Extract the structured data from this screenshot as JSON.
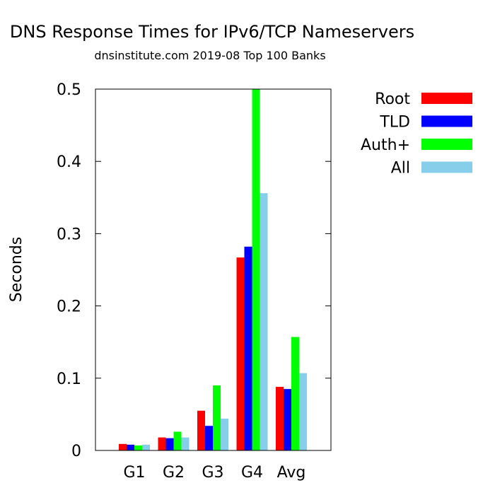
{
  "chart_data": {
    "type": "bar",
    "title": "DNS Response Times for IPv6/TCP Nameservers",
    "subtitle": "dnsinstitute.com 2019-08 Top 100 Banks",
    "xlabel": "",
    "ylabel": "Seconds",
    "categories": [
      "G1",
      "G2",
      "G3",
      "G4",
      "Avg"
    ],
    "ylim": [
      0,
      0.5
    ],
    "yticks": [
      "0",
      "0.1",
      "0.2",
      "0.3",
      "0.4",
      "0.5"
    ],
    "grid": false,
    "legend_position": "top-right",
    "series": [
      {
        "name": "Root",
        "color": "#ff0000",
        "values": [
          0.009,
          0.018,
          0.055,
          0.267,
          0.088
        ]
      },
      {
        "name": "TLD",
        "color": "#0000ff",
        "values": [
          0.008,
          0.017,
          0.034,
          0.282,
          0.085
        ]
      },
      {
        "name": "Auth+",
        "color": "#00ff00",
        "values": [
          0.007,
          0.026,
          0.09,
          0.505,
          0.157
        ]
      },
      {
        "name": "All",
        "color": "#87ceeb",
        "values": [
          0.008,
          0.018,
          0.044,
          0.356,
          0.107
        ]
      }
    ]
  }
}
